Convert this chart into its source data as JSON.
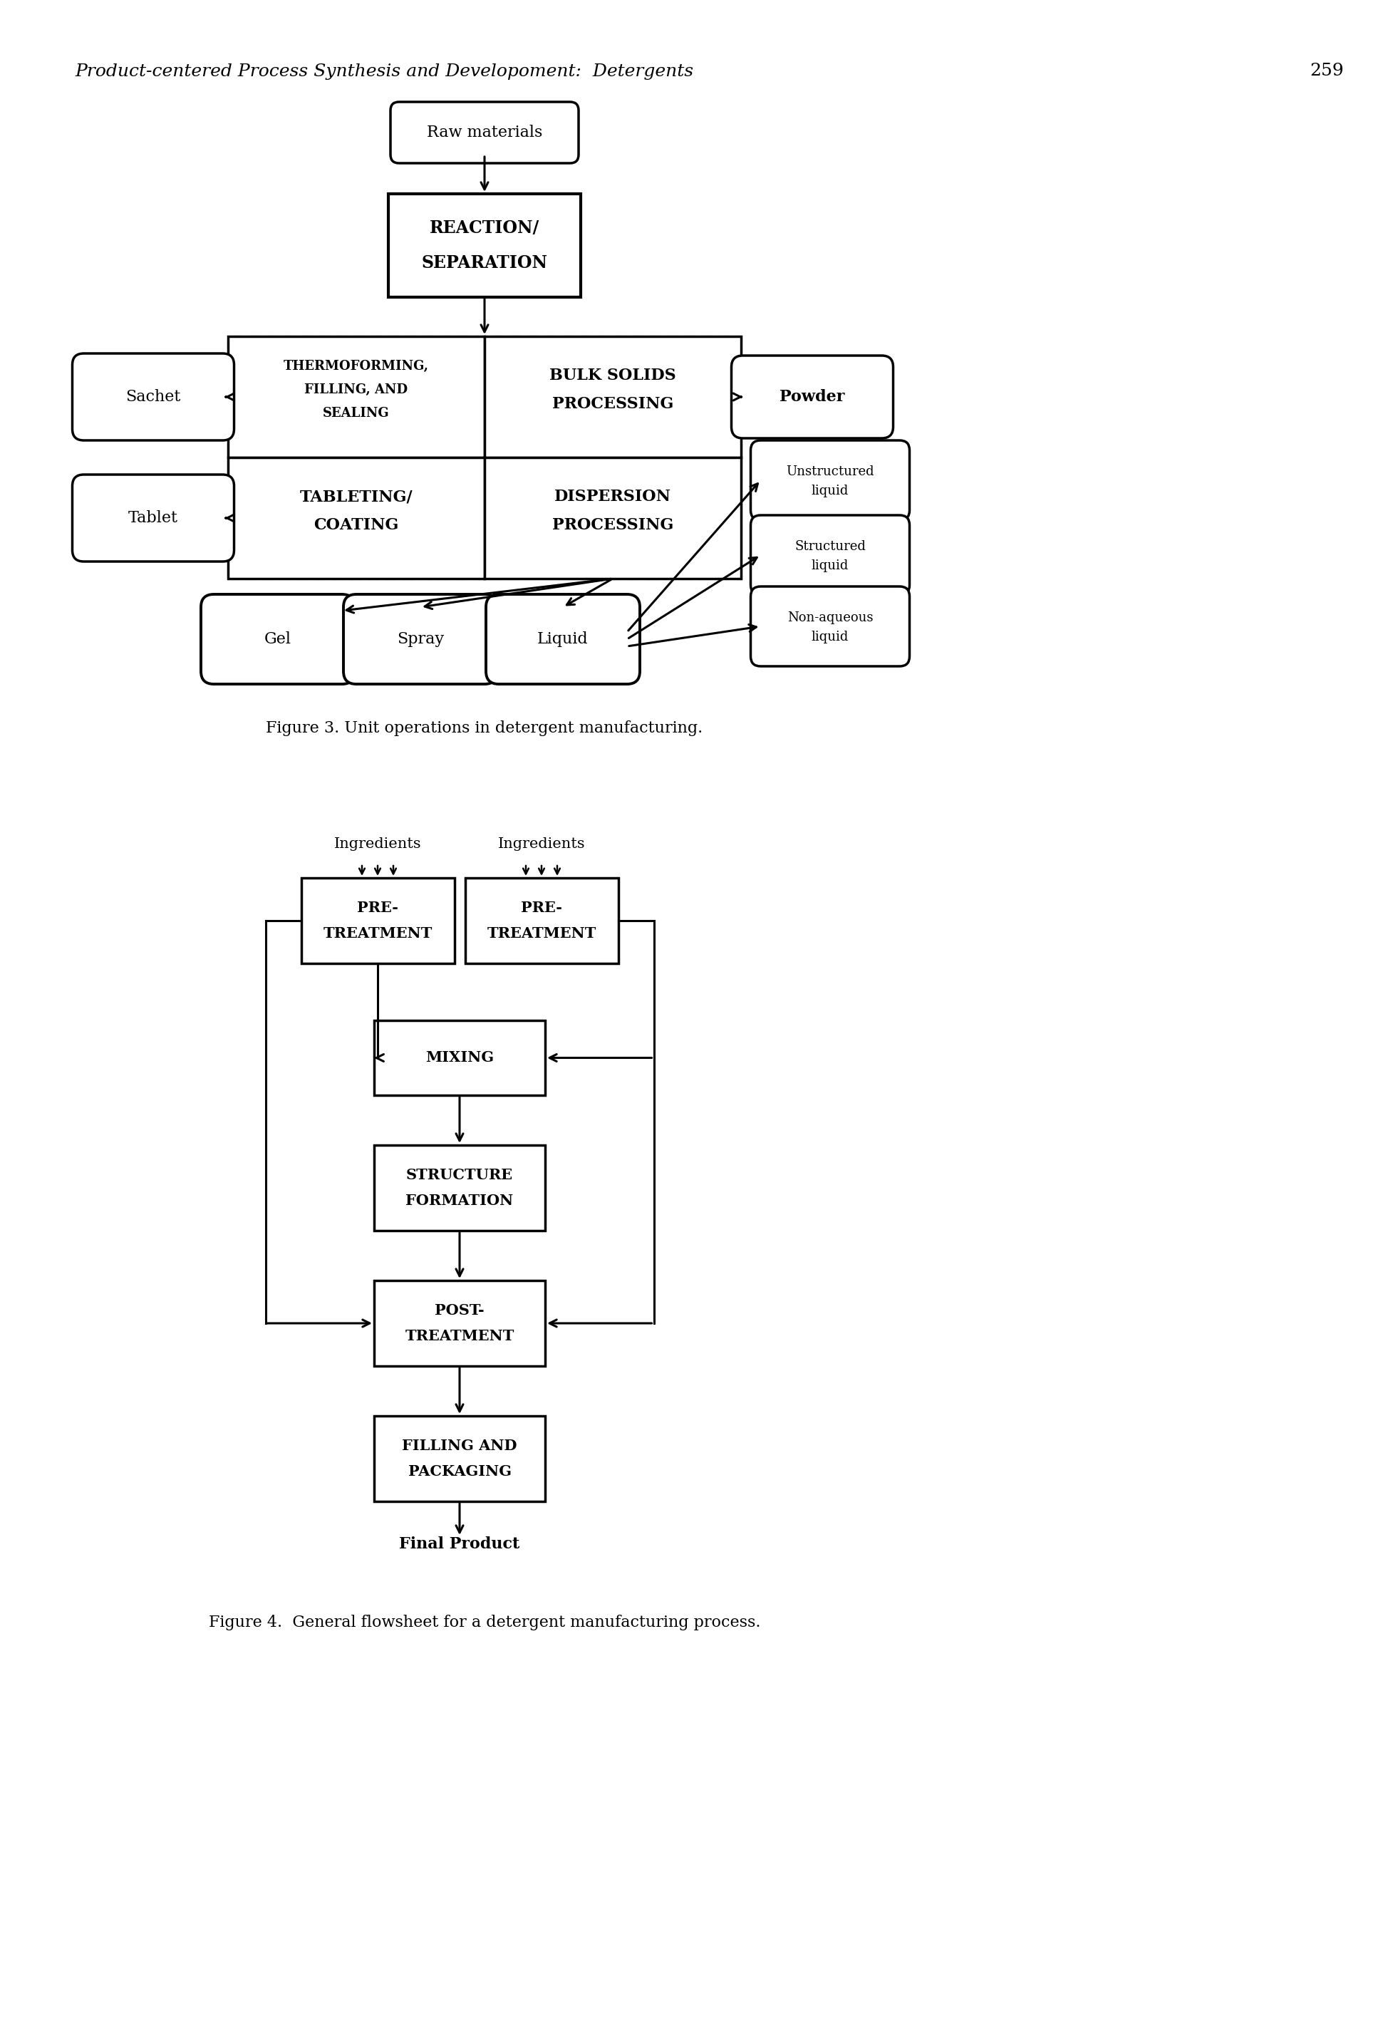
{
  "page_header": "Product-centered Process Synthesis and Developoment:  Detergents",
  "page_number": "259",
  "fig3_caption": "Figure 3. Unit operations in detergent manufacturing.",
  "fig4_caption": "Figure 4.  General flowsheet for a detergent manufacturing process.",
  "background": "#ffffff"
}
